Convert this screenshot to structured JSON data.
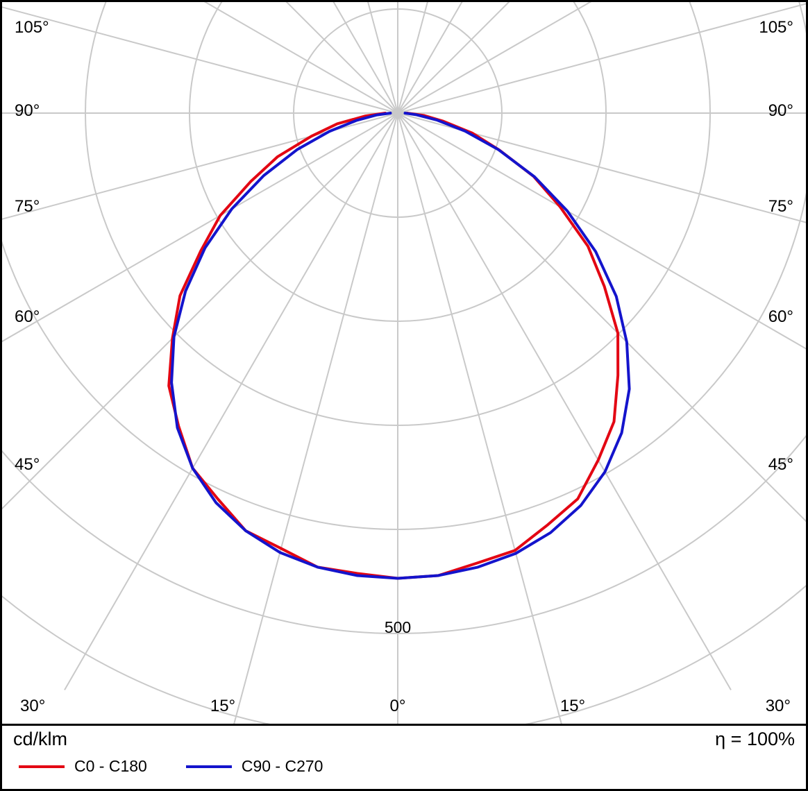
{
  "chart_data": {
    "type": "line",
    "subtype": "polar-photometric-intensity-diagram",
    "title": "",
    "unit_label": "cd/klm",
    "efficiency_text": "η = 100%",
    "radial_gridline_label": "500",
    "left_angle_labels": [
      "105°",
      "90°",
      "75°",
      "60°",
      "45°"
    ],
    "right_angle_labels": [
      "105°",
      "90°",
      "75°",
      "60°",
      "45°"
    ],
    "bottom_angle_labels": [
      "30°",
      "15°",
      "0°",
      "15°",
      "30°"
    ],
    "grid": {
      "color": "#c9c9c9",
      "angle_step_deg": 15,
      "circle_step_value": 100,
      "max_circle_value": 600,
      "labeled_circle_value": 500
    },
    "gamma_angles_deg": [
      0,
      5,
      10,
      15,
      20,
      25,
      30,
      35,
      40,
      45,
      50,
      55,
      60,
      65,
      70,
      75,
      80,
      85,
      90
    ],
    "series": [
      {
        "name": "C0 - C180",
        "color": "#e30613",
        "left_values_cd_per_klm": [
          447,
          444,
          443,
          433,
          427,
          409,
          394,
          367,
          342,
          306,
          273,
          231,
          197,
          156,
          123,
          86,
          59,
          31,
          12
        ],
        "right_values_cd_per_klm": [
          445,
          446,
          439,
          435,
          421,
          409,
          385,
          362,
          329,
          299,
          259,
          223,
          180,
          144,
          104,
          74,
          44,
          25,
          9
        ]
      },
      {
        "name": "C90 - C270",
        "color": "#1414cc",
        "left_values_cd_per_klm": [
          447,
          446,
          443,
          437,
          427,
          413,
          394,
          369,
          338,
          304,
          266,
          226,
          184,
          142,
          103,
          68,
          40,
          20,
          7
        ],
        "right_values_cd_per_klm": [
          447,
          446,
          443,
          438,
          429,
          416,
          398,
          375,
          346,
          311,
          274,
          232,
          188,
          145,
          103,
          67,
          38,
          18,
          7
        ]
      }
    ]
  }
}
